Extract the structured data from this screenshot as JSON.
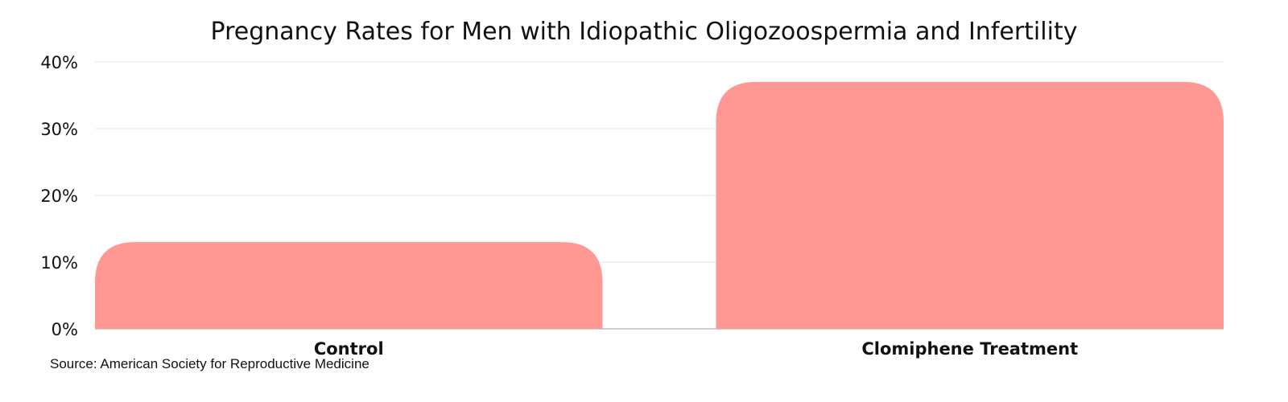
{
  "chart_data": {
    "type": "bar",
    "title": "Pregnancy Rates for Men with Idiopathic Oligozoospermia and Infertility",
    "categories": [
      "Control",
      "Clomiphene Treatment"
    ],
    "values": [
      13,
      37
    ],
    "ylim": [
      0,
      40
    ],
    "yticks": [
      0,
      10,
      20,
      30,
      40
    ],
    "ytick_labels": [
      "0%",
      "10%",
      "20%",
      "30%",
      "40%"
    ],
    "xlabel": "",
    "ylabel": "",
    "grid": true,
    "legend": "none",
    "bar_color": "#ff9893",
    "grid_color": "#e3e3e3",
    "source": "Source: American Society for Reproductive Medicine"
  }
}
